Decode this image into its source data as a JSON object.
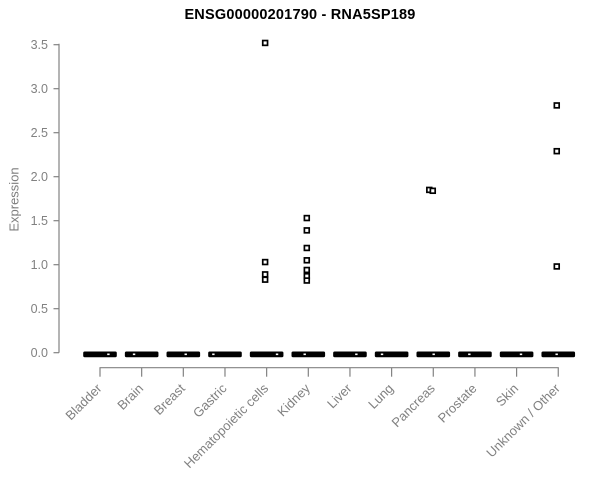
{
  "title": "ENSG00000201790 - RNA5SP189",
  "y_axis": {
    "label": "Expression",
    "tick_labels": [
      "0.0",
      "0.5",
      "1.0",
      "1.5",
      "2.0",
      "2.5",
      "3.0",
      "3.5"
    ]
  },
  "colors": {
    "axis": "#828282",
    "tick_text": "#818181",
    "title_text": "#000000",
    "point_stroke": "#000000",
    "point_fill": "#ffffff",
    "zero_bar": "#000000",
    "background": "#ffffff"
  },
  "chart_data": {
    "type": "scatter",
    "title": "ENSG00000201790 - RNA5SP189",
    "xlabel": "",
    "ylabel": "Expression",
    "ylim": [
      0,
      3.5
    ],
    "yticks": [
      0.0,
      0.5,
      1.0,
      1.5,
      2.0,
      2.5,
      3.0,
      3.5
    ],
    "grid": false,
    "legend": "none",
    "point_marker": "open-square",
    "categories": [
      "Bladder",
      "Brain",
      "Breast",
      "Gastric",
      "Hematopoietic cells",
      "Kidney",
      "Liver",
      "Lung",
      "Pancreas",
      "Prostate",
      "Skin",
      "Unknown / Other"
    ],
    "series": [
      {
        "category": "Bladder",
        "nonzero_points": [],
        "zero_cluster": true
      },
      {
        "category": "Brain",
        "nonzero_points": [],
        "zero_cluster": true
      },
      {
        "category": "Breast",
        "nonzero_points": [],
        "zero_cluster": true
      },
      {
        "category": "Gastric",
        "nonzero_points": [],
        "zero_cluster": true
      },
      {
        "category": "Hematopoietic cells",
        "nonzero_points": [
          3.52,
          1.03,
          0.89,
          0.83
        ],
        "zero_cluster": true
      },
      {
        "category": "Kidney",
        "nonzero_points": [
          1.53,
          1.39,
          1.19,
          1.05,
          0.94,
          0.87,
          0.82
        ],
        "zero_cluster": true
      },
      {
        "category": "Liver",
        "nonzero_points": [],
        "zero_cluster": true
      },
      {
        "category": "Lung",
        "nonzero_points": [],
        "zero_cluster": true
      },
      {
        "category": "Pancreas",
        "nonzero_points": [
          1.85,
          1.84
        ],
        "jitter_dx": [
          -4,
          -0.5
        ],
        "zero_cluster": true
      },
      {
        "category": "Prostate",
        "nonzero_points": [],
        "zero_cluster": true
      },
      {
        "category": "Skin",
        "nonzero_points": [],
        "zero_cluster": true
      },
      {
        "category": "Unknown / Other",
        "nonzero_points": [
          2.81,
          2.29,
          0.98
        ],
        "zero_cluster": true
      }
    ],
    "zero_cluster_note": "many overlapping samples at expression 0 drawn as a thick black dash per category"
  }
}
